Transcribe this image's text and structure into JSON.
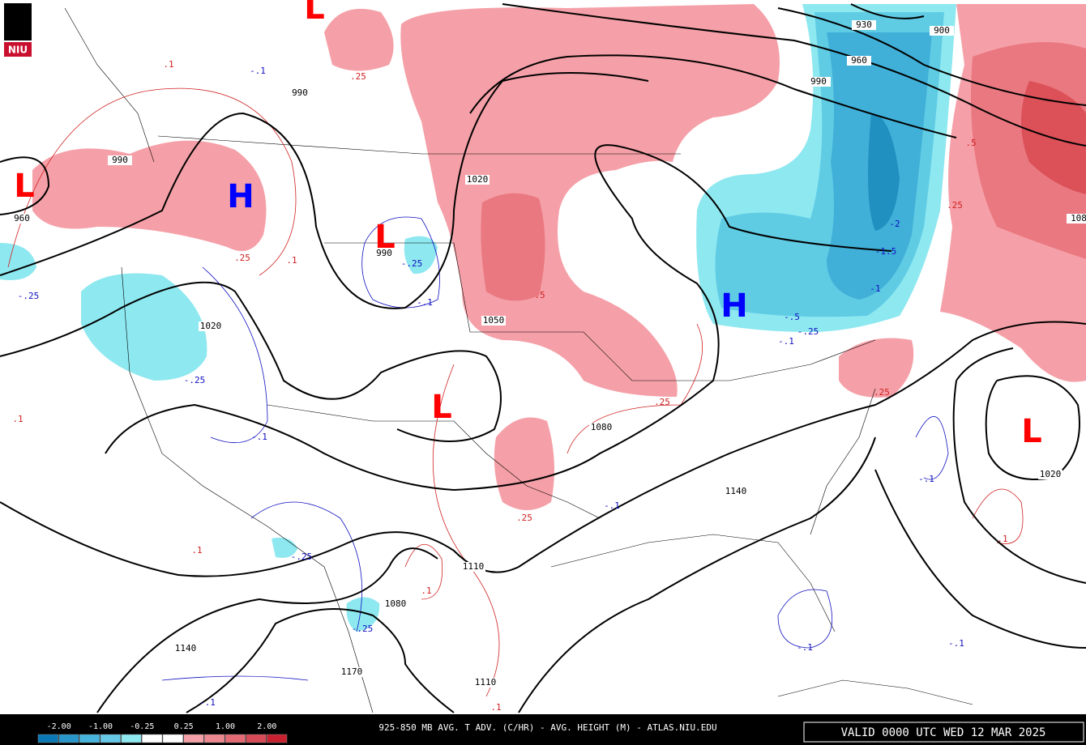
{
  "logo": "NIU",
  "centers": [
    {
      "label": "L",
      "color": "#ff0000"
    },
    {
      "label": "L",
      "color": "#ff0000"
    },
    {
      "label": "H",
      "color": "#0000ff"
    },
    {
      "label": "L",
      "color": "#ff0000"
    },
    {
      "label": "L",
      "color": "#ff0000"
    },
    {
      "label": "H",
      "color": "#0000ff"
    },
    {
      "label": "L",
      "color": "#ff0000"
    }
  ],
  "height_labels": [
    "990",
    "990",
    "960",
    "1020",
    "990",
    "1020",
    "1050",
    "1080",
    "1140",
    "1110",
    "1080",
    "1140",
    "1170",
    "1110",
    "1020",
    "930",
    "900",
    "960",
    "990",
    "108"
  ],
  "advection_labels": [
    {
      "text": ".1",
      "color": "#d02020"
    },
    {
      "text": ".25",
      "color": "#d02020"
    },
    {
      "text": "-.1",
      "color": "#1010c0"
    },
    {
      "text": ".25",
      "color": "#d02020"
    },
    {
      "text": ".1",
      "color": "#d02020"
    },
    {
      "text": "-.25",
      "color": "#1010c0"
    },
    {
      "text": "-.25",
      "color": "#1010c0"
    },
    {
      "text": "-.1",
      "color": "#1010c0"
    },
    {
      "text": "-.25",
      "color": "#1010c0"
    },
    {
      "text": ".1",
      "color": "#d02020"
    },
    {
      "text": "-.1",
      "color": "#1010c0"
    },
    {
      "text": ".5",
      "color": "#d02020"
    },
    {
      "text": ".25",
      "color": "#d02020"
    },
    {
      "text": ".25",
      "color": "#d02020"
    },
    {
      "text": "-1.5",
      "color": "#1010c0"
    },
    {
      "text": "-1",
      "color": "#1010c0"
    },
    {
      "text": "-.5",
      "color": "#1010c0"
    },
    {
      "text": "-.25",
      "color": "#1010c0"
    },
    {
      "text": "-.1",
      "color": "#1010c0"
    },
    {
      "text": ".25",
      "color": "#d02020"
    },
    {
      "text": "-.1",
      "color": "#1010c0"
    },
    {
      "text": ".1",
      "color": "#d02020"
    },
    {
      "text": "-.25",
      "color": "#1010c0"
    },
    {
      "text": ".1",
      "color": "#d02020"
    },
    {
      "text": "-.25",
      "color": "#1010c0"
    },
    {
      "text": "-.1",
      "color": "#1010c0"
    },
    {
      "text": ".1",
      "color": "#d02020"
    },
    {
      "text": "-.1",
      "color": "#1010c0"
    },
    {
      "text": "-.1",
      "color": "#1010c0"
    },
    {
      "text": ".1",
      "color": "#d02020"
    },
    {
      "text": "-.1",
      "color": "#1010c0"
    },
    {
      "text": ".25",
      "color": "#d02020"
    },
    {
      "text": ".5",
      "color": "#d02020"
    },
    {
      "text": "-2",
      "color": "#1010c0"
    }
  ],
  "legend": {
    "labels": [
      "-2.00",
      "-1.00",
      "-0.25",
      "0.25",
      "1.00",
      "2.00"
    ],
    "colors": [
      "#0a78b4",
      "#2896c8",
      "#46b4dc",
      "#64c8e6",
      "#8ee8f0",
      "#ffffff",
      "#ffffff",
      "#f5a0a8",
      "#ee8890",
      "#e46a74",
      "#d84a56",
      "#c8202e"
    ]
  },
  "footer": {
    "title": "925-850 MB AVG. T ADV. (C/HR) - AVG. HEIGHT (M) - ATLAS.NIU.EDU",
    "valid": "VALID 0000 UTC WED 12 MAR 2025"
  }
}
